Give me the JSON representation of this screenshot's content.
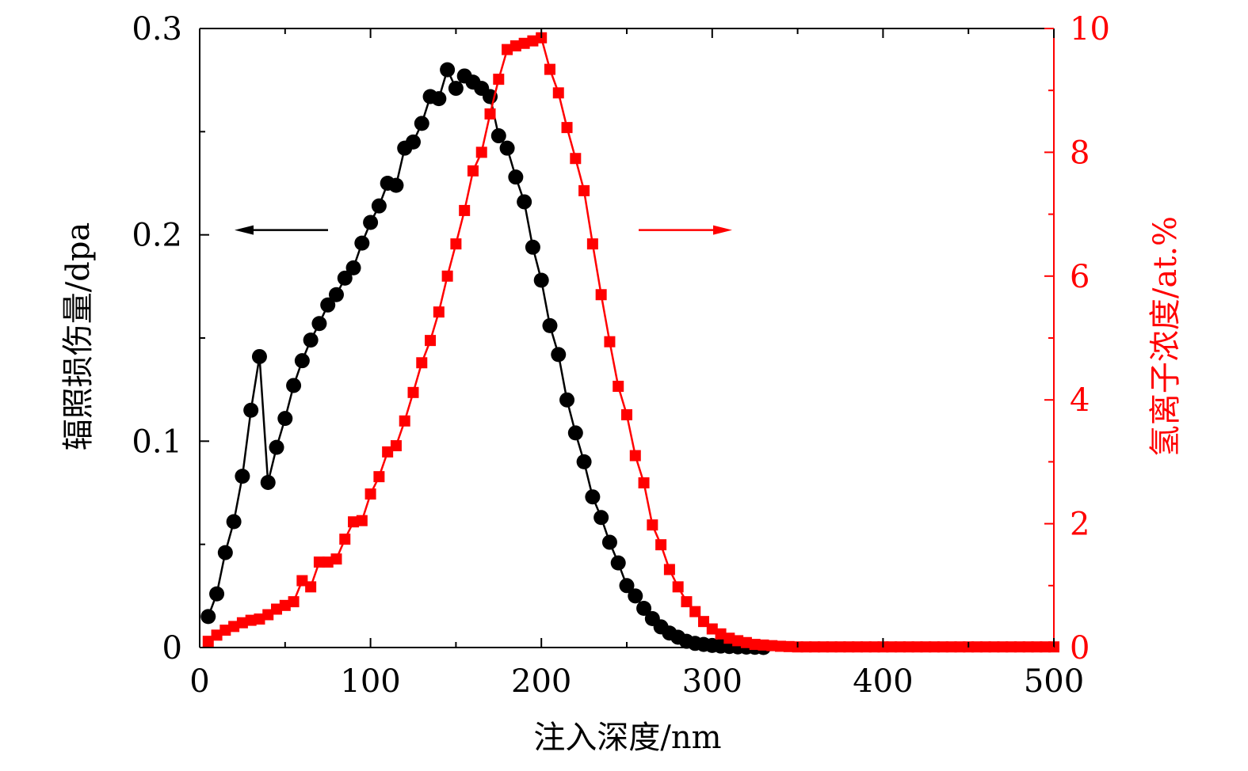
{
  "chart_data": {
    "type": "line",
    "xlabel": "注入深度/nm",
    "ylabel_left": "辐照损伤量/dpa",
    "ylabel_right": "氢离子浓度/at.%",
    "xlim": [
      0,
      500
    ],
    "ylim_left": [
      0,
      0.3
    ],
    "ylim_right": [
      0,
      10
    ],
    "x_ticks": [
      "0",
      "100",
      "200",
      "300",
      "400",
      "500"
    ],
    "y_left_ticks": [
      "0",
      "0.1",
      "0.2",
      "0.3"
    ],
    "y_right_ticks": [
      "0",
      "2",
      "4",
      "6",
      "8",
      "10"
    ],
    "grid": false,
    "colors": {
      "left": "#000000",
      "right": "#ff0000"
    },
    "arrows": {
      "left_series_points": "left",
      "right_series_points": "right"
    },
    "series": [
      {
        "axis": "left",
        "marker": "circle",
        "x": [
          5,
          10,
          15,
          20,
          25,
          30,
          35,
          40,
          45,
          50,
          55,
          60,
          65,
          70,
          75,
          80,
          85,
          90,
          95,
          100,
          105,
          110,
          115,
          120,
          125,
          130,
          135,
          140,
          145,
          150,
          155,
          160,
          165,
          170,
          175,
          180,
          185,
          190,
          195,
          200,
          205,
          210,
          215,
          220,
          225,
          230,
          235,
          240,
          245,
          250,
          255,
          260,
          265,
          270,
          275,
          280,
          285,
          290,
          295,
          300,
          305,
          310,
          315,
          320,
          325,
          330
        ],
        "values": [
          0.015,
          0.026,
          0.046,
          0.061,
          0.083,
          0.115,
          0.141,
          0.08,
          0.097,
          0.111,
          0.127,
          0.139,
          0.149,
          0.157,
          0.166,
          0.171,
          0.179,
          0.184,
          0.196,
          0.206,
          0.214,
          0.225,
          0.224,
          0.242,
          0.245,
          0.254,
          0.267,
          0.266,
          0.28,
          0.271,
          0.277,
          0.274,
          0.271,
          0.267,
          0.248,
          0.242,
          0.228,
          0.216,
          0.194,
          0.178,
          0.156,
          0.142,
          0.12,
          0.104,
          0.09,
          0.073,
          0.063,
          0.051,
          0.041,
          0.03,
          0.025,
          0.019,
          0.014,
          0.01,
          0.007,
          0.005,
          0.003,
          0.002,
          0.0015,
          0.001,
          0.0007,
          0.0005,
          0.0003,
          0.0002,
          0.0001,
          0.0
        ]
      },
      {
        "axis": "right",
        "marker": "square",
        "x": [
          5,
          10,
          15,
          20,
          25,
          30,
          35,
          40,
          45,
          50,
          55,
          60,
          65,
          70,
          75,
          80,
          85,
          90,
          95,
          100,
          105,
          110,
          115,
          120,
          125,
          130,
          135,
          140,
          145,
          150,
          155,
          160,
          165,
          170,
          175,
          180,
          185,
          190,
          195,
          200,
          205,
          210,
          215,
          220,
          225,
          230,
          235,
          240,
          245,
          250,
          255,
          260,
          265,
          270,
          275,
          280,
          285,
          290,
          295,
          300,
          305,
          310,
          315,
          320,
          325,
          330,
          335,
          340,
          345,
          350,
          355,
          360,
          365,
          370,
          375,
          380,
          385,
          390,
          395,
          400,
          405,
          410,
          415,
          420,
          425,
          430,
          435,
          440,
          445,
          450,
          455,
          460,
          465,
          470,
          475,
          480,
          485,
          490,
          495,
          500
        ],
        "values": [
          0.1,
          0.2,
          0.28,
          0.34,
          0.4,
          0.44,
          0.46,
          0.53,
          0.62,
          0.68,
          0.74,
          1.08,
          0.98,
          1.38,
          1.38,
          1.43,
          1.75,
          2.03,
          2.05,
          2.48,
          2.76,
          3.16,
          3.26,
          3.66,
          4.12,
          4.6,
          4.96,
          5.42,
          6.0,
          6.52,
          7.06,
          7.7,
          8.0,
          8.62,
          9.18,
          9.66,
          9.72,
          9.76,
          9.8,
          9.85,
          9.34,
          8.96,
          8.4,
          7.9,
          7.38,
          6.52,
          5.7,
          4.94,
          4.22,
          3.76,
          3.1,
          2.66,
          1.98,
          1.66,
          1.26,
          0.98,
          0.74,
          0.58,
          0.42,
          0.3,
          0.22,
          0.15,
          0.11,
          0.08,
          0.05,
          0.04,
          0.03,
          0.02,
          0.015,
          0.01,
          0.01,
          0.01,
          0.01,
          0.01,
          0.01,
          0.01,
          0.01,
          0.01,
          0.01,
          0.01,
          0.01,
          0.01,
          0.01,
          0.01,
          0.01,
          0.01,
          0.01,
          0.01,
          0.01,
          0.01,
          0.01,
          0.01,
          0.01,
          0.01,
          0.01,
          0.01,
          0.01,
          0.01,
          0.01,
          0.01
        ]
      }
    ]
  }
}
